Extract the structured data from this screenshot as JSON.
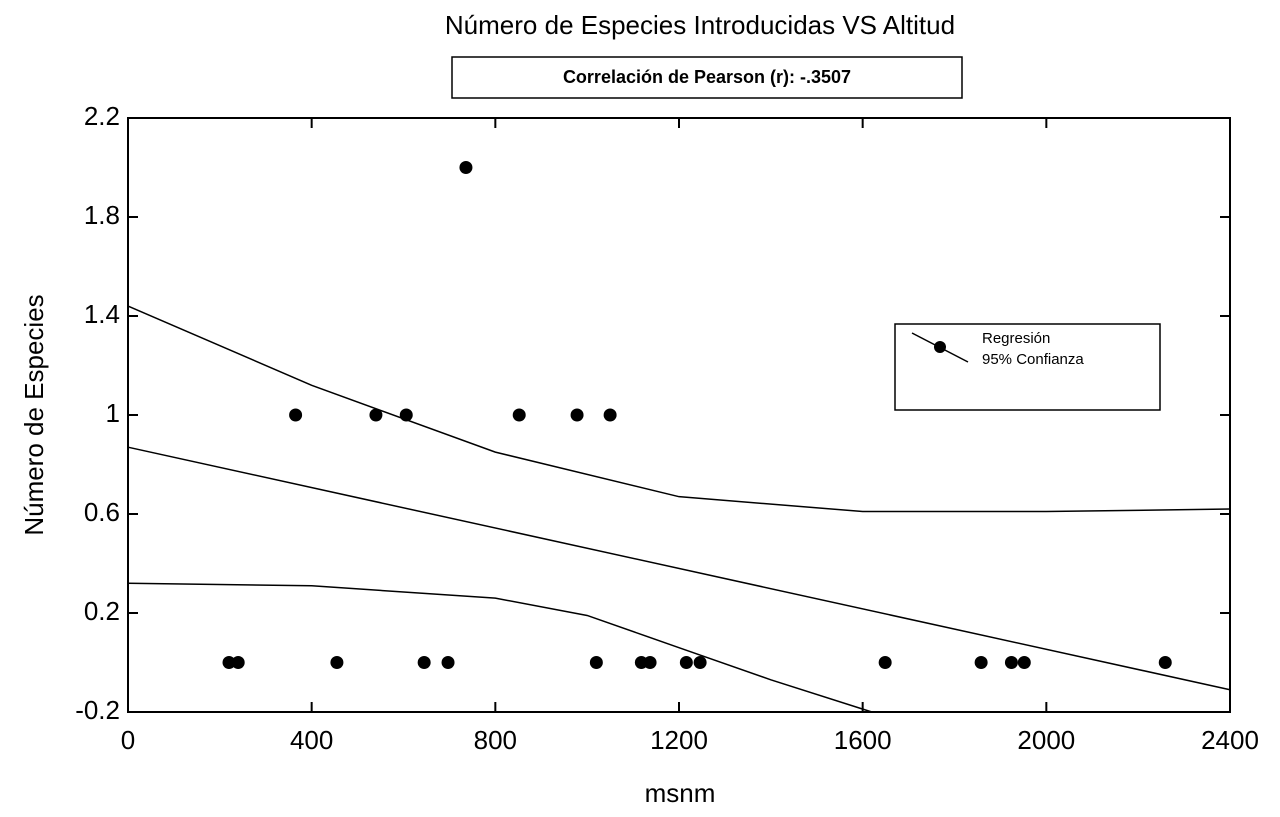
{
  "chart_data": {
    "type": "scatter",
    "title": "Número de Especies Introducidas VS Altitud",
    "annotation": "Correlación de Pearson (r): -.3507",
    "x_label": "msnm",
    "y_label": "Número de Especies",
    "xlim": [
      0,
      2400
    ],
    "ylim": [
      -0.2,
      2.2
    ],
    "xticks": [
      0,
      400,
      800,
      1200,
      1600,
      2000,
      2400
    ],
    "yticks": [
      -0.2,
      0.2,
      0.6,
      1,
      1.4,
      1.8,
      2.2
    ],
    "color": "#000000",
    "legend": "upper right",
    "points": {
      "x": [
        220,
        240,
        365,
        455,
        540,
        606,
        645,
        697,
        736,
        852,
        978,
        1020,
        1050,
        1118,
        1137,
        1216,
        1246,
        1649,
        1858,
        1924,
        1952,
        2259
      ],
      "values": [
        0,
        0,
        1,
        0,
        1,
        1,
        0,
        0,
        2,
        1,
        1,
        0,
        1,
        0,
        0,
        0,
        0,
        0,
        0,
        0,
        0,
        0
      ]
    },
    "series": [
      {
        "name": "Regresión",
        "x": [
          0,
          2400
        ],
        "values": [
          0.87,
          -0.11
        ]
      },
      {
        "name": "95% Confianza",
        "x": [
          0,
          400,
          800,
          1200,
          1600,
          2000,
          2400
        ],
        "values": [
          1.44,
          1.12,
          0.85,
          0.67,
          0.61,
          0.61,
          0.62
        ]
      },
      {
        "x": [
          0,
          400,
          800,
          1000,
          1200,
          1400,
          1620
        ],
        "values": [
          0.32,
          0.31,
          0.26,
          0.19,
          0.06,
          -0.07,
          -0.2
        ]
      }
    ]
  }
}
